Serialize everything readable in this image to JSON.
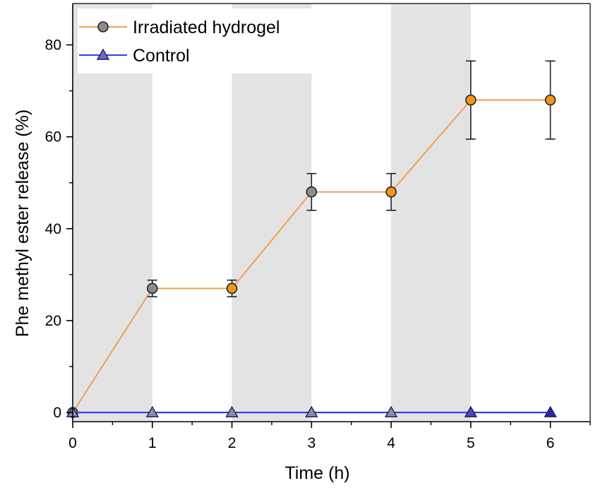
{
  "chart_data": {
    "type": "line",
    "title": "",
    "xlabel": "Time (h)",
    "ylabel": "Phe methyl ester release (%)",
    "xlim": [
      0,
      6.5
    ],
    "ylim": [
      -2,
      89
    ],
    "xticks": [
      0,
      1,
      2,
      3,
      4,
      5,
      6
    ],
    "yticks": [
      0,
      20,
      40,
      60,
      80
    ],
    "shaded_intervals": [
      [
        0,
        1
      ],
      [
        2,
        3
      ],
      [
        4,
        5
      ]
    ],
    "shade_color": "#e3e3e3",
    "series": [
      {
        "name": "Irradiated hydrogel",
        "marker": "circle",
        "line_color": "#f0a050",
        "x": [
          0,
          1,
          2,
          3,
          4,
          5,
          6
        ],
        "values": [
          0,
          27,
          27,
          48,
          48,
          68,
          68
        ],
        "errors": [
          0,
          1.8,
          1.8,
          4,
          4,
          8.5,
          8.5
        ],
        "marker_colors": [
          "#8c8c8c",
          "#8c8c8c",
          "#f0961e",
          "#8c8c8c",
          "#f0961e",
          "#f0961e",
          "#f0961e"
        ]
      },
      {
        "name": "Control",
        "marker": "triangle",
        "line_color": "#3a3ae8",
        "x": [
          0,
          1,
          2,
          3,
          4,
          5,
          6
        ],
        "values": [
          0,
          0,
          0,
          0,
          0,
          0,
          0
        ],
        "marker_colors": [
          "#8c8ca8",
          "#8c8ca8",
          "#8c8ca8",
          "#8c8ca8",
          "#8c8ca8",
          "#4a4ab0",
          "#2a2a9a"
        ]
      }
    ],
    "legend": {
      "position": "top-left",
      "entries": [
        "Irradiated hydrogel",
        "Control"
      ]
    }
  }
}
